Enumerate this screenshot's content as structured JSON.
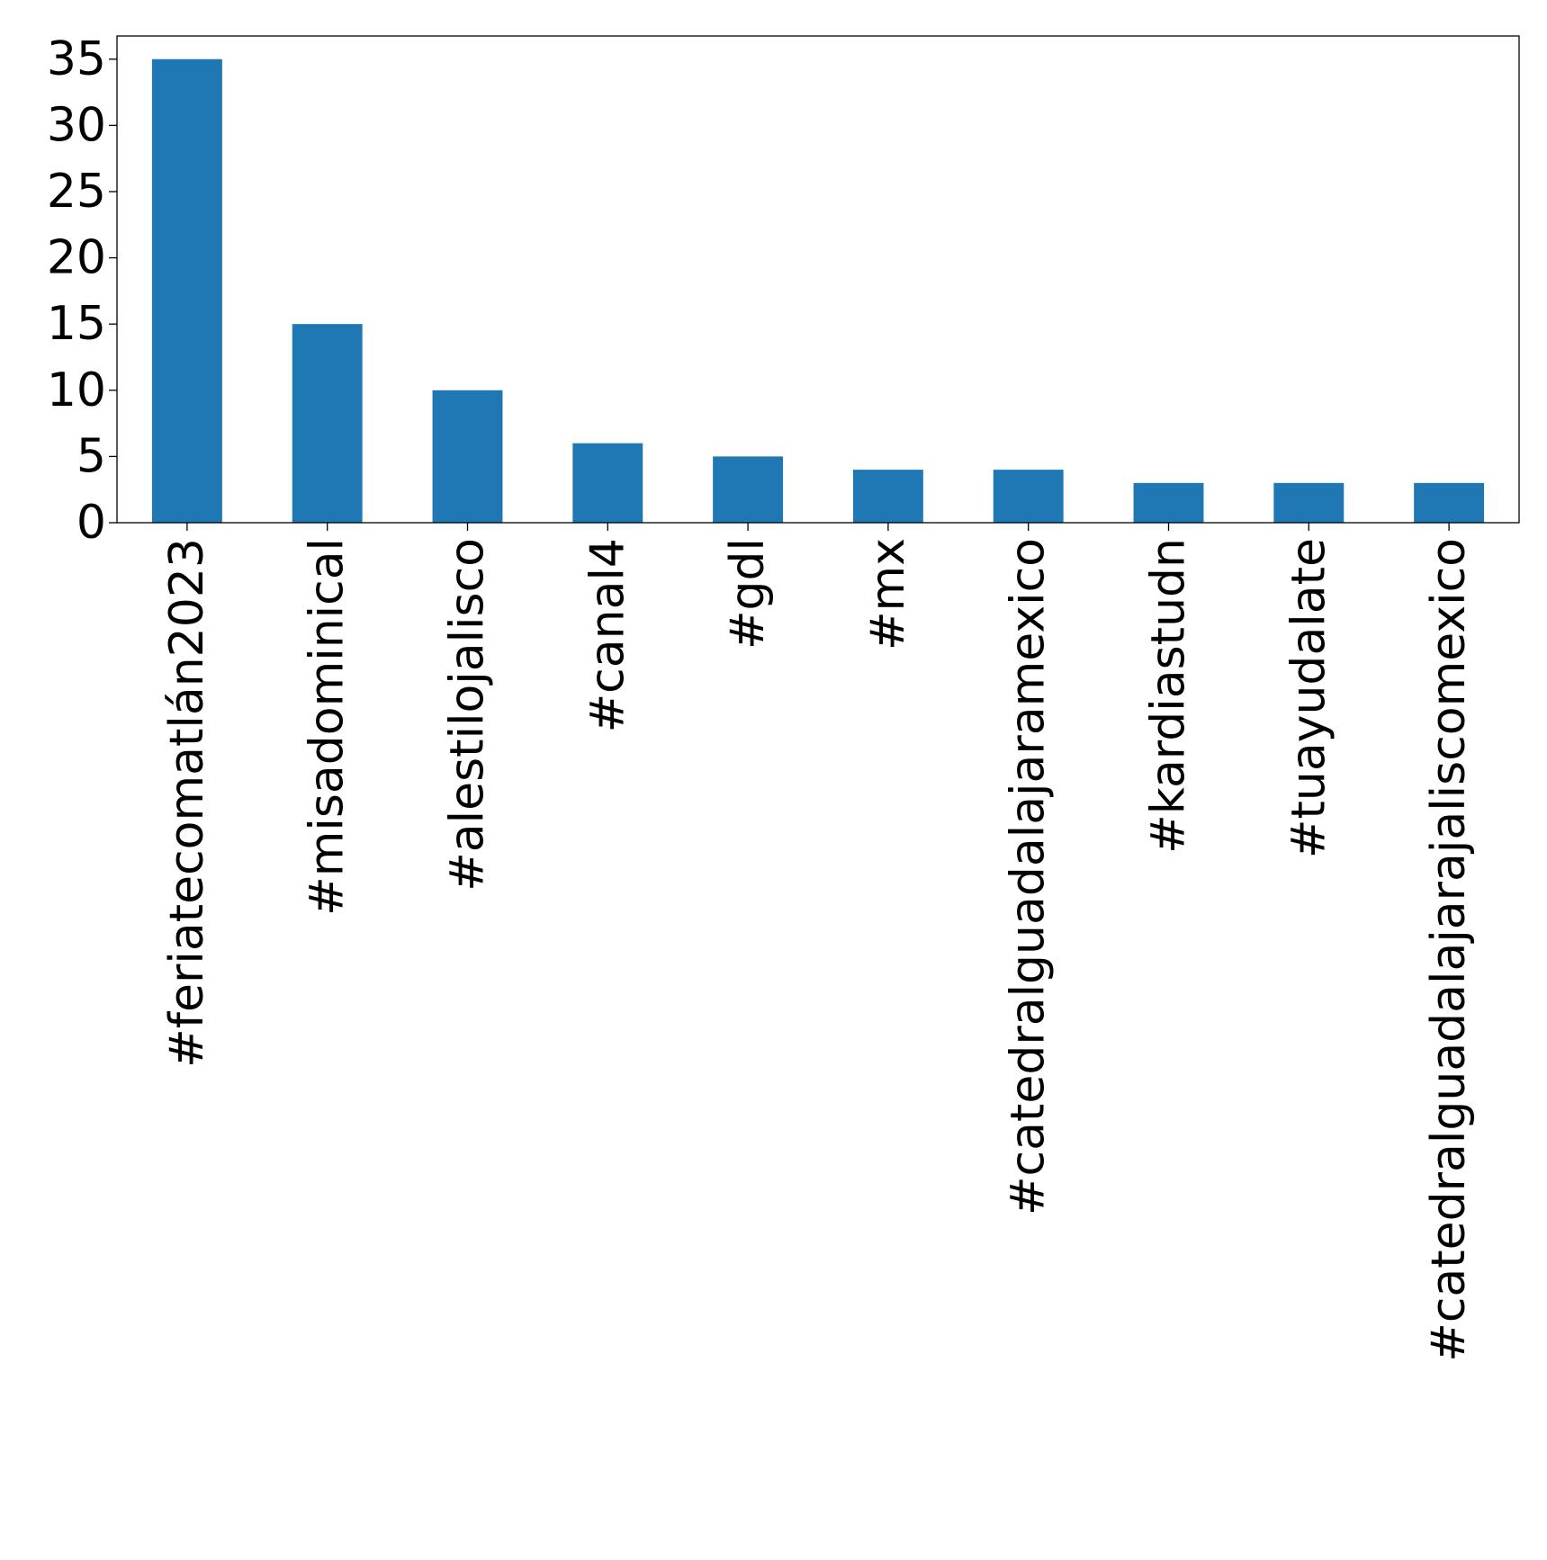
{
  "chart_data": {
    "type": "bar",
    "title": "",
    "xlabel": "",
    "ylabel": "",
    "categories": [
      "#feriatecomatlán2023",
      "#misadominical",
      "#alestilojalisco",
      "#canal4",
      "#gdl",
      "#mx",
      "#catedralguadalajaramexico",
      "#kardiastudn",
      "#tuayudalate",
      "#catedralguadalajarajaliscomexico"
    ],
    "values": [
      35,
      15,
      10,
      6,
      5,
      4,
      4,
      3,
      3,
      3
    ],
    "ylim": [
      0,
      36.75
    ],
    "yticks": [
      0,
      5,
      10,
      15,
      20,
      25,
      30,
      35
    ],
    "bar_color": "#1f77b4",
    "grid": false,
    "legend": "none"
  }
}
